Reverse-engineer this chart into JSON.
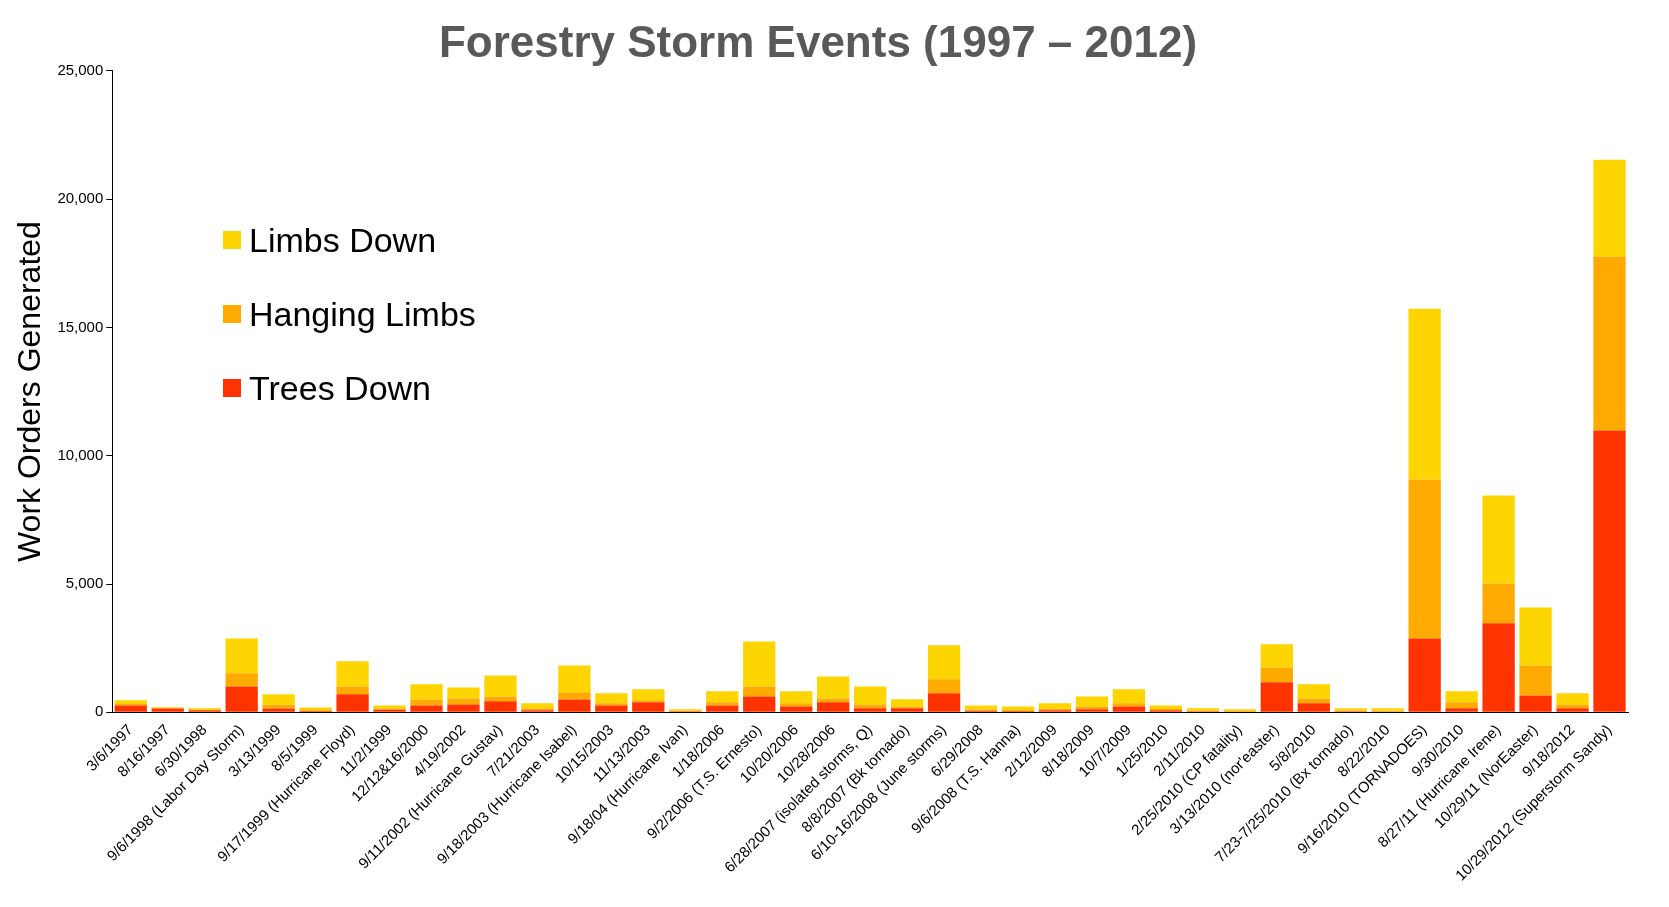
{
  "chart_data": {
    "type": "bar",
    "title": "Forestry Storm Events (1997 – 2012)",
    "ylabel": "Work Orders Generated",
    "stacked": true,
    "legend": "top left",
    "grid": false,
    "categories": [
      "3/6/1997",
      "8/16/1997",
      "6/30/1998",
      "9/6/1998 (Labor Day Storm)",
      "3/13/1999",
      "8/5/1999",
      "9/17/1999 (Hurricane Floyd)",
      "11/2/1999",
      "12/12&16/2000",
      "4/19/2002",
      "9/11/2002 (Hurricane Gustav)",
      "7/21/2003",
      "9/18/2003 (Hurricane Isabel)",
      "10/15/2003",
      "11/13/2003",
      "9/18/04 (Hurricane Ivan)",
      "1/18/2006",
      "9/2/2006 (T.S. Ernesto)",
      "10/20/2006",
      "10/28/2006",
      "6/28/2007 (isolated storms, Q)",
      "8/8/2007 (Bk tornado)",
      "6/10-16/2008 (June storms)",
      "6/29/2008",
      "9/6/2008 (T.S. Hanna)",
      "2/12/2009",
      "8/18/2009",
      "10/7/2009",
      "1/25/2010",
      "2/11/2010",
      "2/25/2010 (CP fatality)",
      "3/13/2010 (nor'easter)",
      "5/8/2010",
      "7/23-7/25/2010 (Bx tornado)",
      "8/22/2010",
      "9/16/2010 (TORNADOES)",
      "9/30/2010",
      "8/27/11 (Hurricane Irene)",
      "10/29/11 (NorEaster)",
      "9/18/2012",
      "10/29/2012 (Superstorm Sandy)"
    ],
    "series": [
      {
        "name": "Trees Down",
        "color": "#ff3300",
        "values": [
          270,
          150,
          80,
          1010,
          150,
          50,
          700,
          100,
          270,
          310,
          430,
          80,
          500,
          270,
          390,
          40,
          270,
          620,
          230,
          390,
          160,
          160,
          740,
          60,
          50,
          80,
          120,
          230,
          80,
          40,
          30,
          1170,
          350,
          40,
          30,
          2880,
          160,
          3470,
          660,
          160,
          10980
        ]
      },
      {
        "name": "Hanging Limbs",
        "color": "#ffaa00",
        "values": [
          50,
          null,
          null,
          510,
          150,
          30,
          310,
          50,
          230,
          230,
          190,
          70,
          280,
          80,
          80,
          20,
          120,
          390,
          120,
          150,
          150,
          70,
          550,
          50,
          30,
          60,
          110,
          120,
          50,
          20,
          20,
          580,
          190,
          30,
          30,
          6190,
          230,
          1550,
          1170,
          150,
          6780
        ]
      },
      {
        "name": "Limbs Down",
        "color": "#ffd500",
        "values": [
          150,
          50,
          80,
          1360,
          400,
          110,
          980,
          120,
          590,
          430,
          820,
          200,
          1050,
          390,
          430,
          60,
          430,
          1750,
          470,
          860,
          700,
          280,
          1320,
          160,
          150,
          210,
          390,
          550,
          140,
          100,
          70,
          900,
          550,
          90,
          100,
          6660,
          430,
          3430,
          2260,
          430,
          3770
        ]
      }
    ],
    "ylim": [
      0,
      25000
    ],
    "yticks": [
      0,
      {
        "value": 5000,
        "label": "5,000"
      },
      {
        "value": 10000,
        "label": "10,000"
      },
      {
        "value": 15000,
        "label": "15,000"
      },
      {
        "value": 20000,
        "label": "20,000"
      },
      {
        "value": 25000,
        "label": "25,000"
      }
    ]
  }
}
